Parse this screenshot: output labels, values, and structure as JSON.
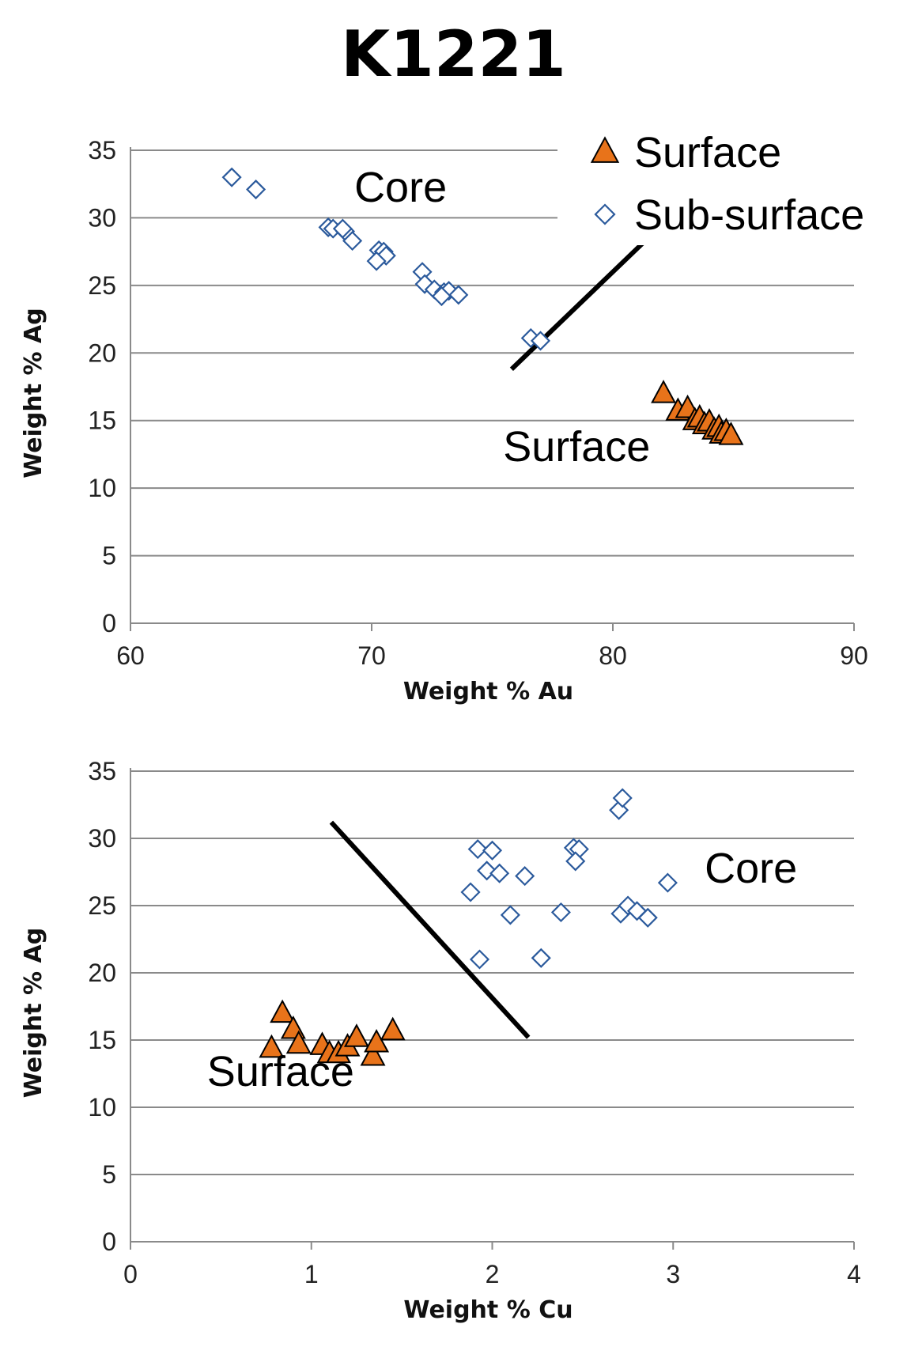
{
  "title": "K1221",
  "legend": {
    "position": "top-right",
    "items": [
      {
        "label": "Surface",
        "marker": "triangle",
        "color": "#e8731a",
        "stroke": "#000000"
      },
      {
        "label": "Sub-surface",
        "marker": "diamond",
        "color": "#ffffff",
        "stroke": "#2b5a9c"
      }
    ]
  },
  "chart_data": [
    {
      "type": "scatter",
      "xlabel": "Weight % Au",
      "ylabel": "Weight % Ag",
      "xlim": [
        60,
        90
      ],
      "ylim": [
        0,
        35
      ],
      "xticks": [
        "60",
        "70",
        "80",
        "90"
      ],
      "yticks": [
        "0",
        "5",
        "10",
        "15",
        "20",
        "25",
        "30",
        "35"
      ],
      "grid": "horizontal",
      "series": [
        {
          "name": "Surface",
          "points": [
            [
              82.1,
              17.0
            ],
            [
              82.7,
              15.7
            ],
            [
              83.1,
              15.9
            ],
            [
              83.4,
              15.0
            ],
            [
              83.6,
              15.2
            ],
            [
              83.8,
              14.7
            ],
            [
              84.0,
              14.9
            ],
            [
              84.2,
              14.3
            ],
            [
              84.4,
              14.5
            ],
            [
              84.5,
              14.0
            ],
            [
              84.7,
              14.2
            ],
            [
              84.9,
              13.9
            ]
          ]
        },
        {
          "name": "Sub-surface",
          "points": [
            [
              64.2,
              33.0
            ],
            [
              65.2,
              32.1
            ],
            [
              68.2,
              29.3
            ],
            [
              68.4,
              29.2
            ],
            [
              68.9,
              29.0
            ],
            [
              69.2,
              28.3
            ],
            [
              68.8,
              29.2
            ],
            [
              70.3,
              27.6
            ],
            [
              70.5,
              27.5
            ],
            [
              70.6,
              27.2
            ],
            [
              70.2,
              26.8
            ],
            [
              72.1,
              26.0
            ],
            [
              72.2,
              25.1
            ],
            [
              72.6,
              24.7
            ],
            [
              73.0,
              24.5
            ],
            [
              73.2,
              24.6
            ],
            [
              73.6,
              24.3
            ],
            [
              72.9,
              24.2
            ],
            [
              76.6,
              21.1
            ],
            [
              77.0,
              20.9
            ]
          ]
        }
      ],
      "divider_line": [
        [
          75.8,
          18.8
        ],
        [
          81.4,
          28.4
        ]
      ],
      "annotations": [
        {
          "text": "Core",
          "at": [
            71.2,
            31.2
          ]
        },
        {
          "text": "Surface",
          "at": [
            78.5,
            12.0
          ]
        }
      ]
    },
    {
      "type": "scatter",
      "xlabel": "Weight % Cu",
      "ylabel": "Weight % Ag",
      "xlim": [
        0,
        4
      ],
      "ylim": [
        0,
        35
      ],
      "xticks": [
        "0",
        "1",
        "2",
        "3",
        "4"
      ],
      "yticks": [
        "0",
        "5",
        "10",
        "15",
        "20",
        "25",
        "30",
        "35"
      ],
      "grid": "horizontal",
      "series": [
        {
          "name": "Surface",
          "points": [
            [
              0.78,
              14.4
            ],
            [
              0.84,
              17.0
            ],
            [
              0.9,
              15.8
            ],
            [
              0.93,
              14.7
            ],
            [
              1.06,
              14.6
            ],
            [
              1.1,
              14.0
            ],
            [
              1.15,
              14.0
            ],
            [
              1.2,
              14.5
            ],
            [
              1.25,
              15.2
            ],
            [
              1.34,
              13.8
            ],
            [
              1.36,
              14.8
            ],
            [
              1.45,
              15.7
            ]
          ]
        },
        {
          "name": "Sub-surface",
          "points": [
            [
              1.92,
              29.2
            ],
            [
              2.0,
              29.1
            ],
            [
              1.97,
              27.6
            ],
            [
              2.04,
              27.4
            ],
            [
              1.88,
              26.0
            ],
            [
              2.18,
              27.2
            ],
            [
              2.1,
              24.3
            ],
            [
              2.38,
              24.5
            ],
            [
              1.93,
              21.0
            ],
            [
              2.27,
              21.1
            ],
            [
              2.45,
              29.3
            ],
            [
              2.48,
              29.2
            ],
            [
              2.46,
              28.3
            ],
            [
              2.7,
              32.1
            ],
            [
              2.72,
              33.0
            ],
            [
              2.71,
              24.4
            ],
            [
              2.75,
              25.0
            ],
            [
              2.8,
              24.6
            ],
            [
              2.86,
              24.1
            ],
            [
              2.97,
              26.7
            ]
          ]
        }
      ],
      "divider_line": [
        [
          1.11,
          31.2
        ],
        [
          2.2,
          15.2
        ]
      ],
      "annotations": [
        {
          "text": "Core",
          "at": [
            3.43,
            26.7
          ]
        },
        {
          "text": "Surface",
          "at": [
            0.83,
            11.6
          ]
        }
      ]
    }
  ]
}
